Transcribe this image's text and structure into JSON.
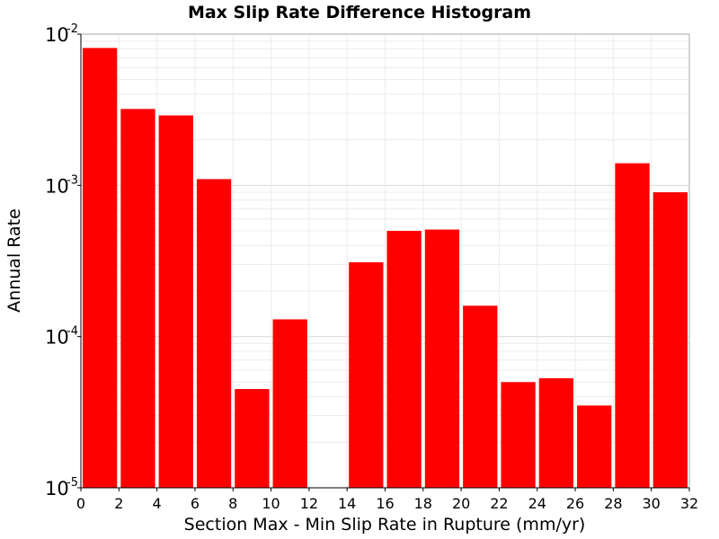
{
  "chart_data": {
    "type": "bar",
    "title": "Max Slip Rate Difference Histogram",
    "xlabel": "Section Max - Min Slip Rate in Rupture (mm/yr)",
    "ylabel": "Annual Rate",
    "xlim": [
      0,
      32
    ],
    "ylim": [
      1e-05,
      0.01
    ],
    "y_scale": "log",
    "bin_width": 2,
    "x_ticks": [
      "0",
      "2",
      "4",
      "6",
      "8",
      "10",
      "12",
      "14",
      "16",
      "18",
      "20",
      "22",
      "24",
      "26",
      "28",
      "30",
      "32"
    ],
    "y_ticks": [
      {
        "base": "10",
        "exp": "-5",
        "value": 1e-05
      },
      {
        "base": "10",
        "exp": "-4",
        "value": 0.0001
      },
      {
        "base": "10",
        "exp": "-3",
        "value": 0.001
      },
      {
        "base": "10",
        "exp": "-2",
        "value": 0.01
      }
    ],
    "bins": [
      {
        "x": 1,
        "value": 0.0081
      },
      {
        "x": 3,
        "value": 0.0032
      },
      {
        "x": 5,
        "value": 0.0029
      },
      {
        "x": 7,
        "value": 0.0011
      },
      {
        "x": 9,
        "value": 4.5e-05
      },
      {
        "x": 11,
        "value": 0.00013
      },
      {
        "x": 13,
        "value": 0
      },
      {
        "x": 15,
        "value": 0.00031
      },
      {
        "x": 17,
        "value": 0.0005
      },
      {
        "x": 19,
        "value": 0.00051
      },
      {
        "x": 21,
        "value": 0.00016
      },
      {
        "x": 23,
        "value": 5e-05
      },
      {
        "x": 25,
        "value": 5.3e-05
      },
      {
        "x": 27,
        "value": 3.5e-05
      },
      {
        "x": 29,
        "value": 0.0014
      },
      {
        "x": 31,
        "value": 0.0009
      }
    ],
    "bar_color": "#ff0000",
    "grid": true,
    "legend": "none"
  }
}
